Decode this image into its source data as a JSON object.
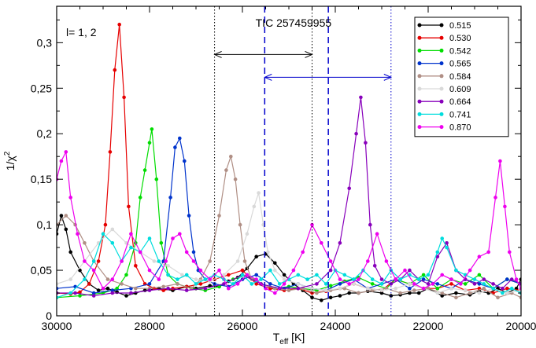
{
  "chart_data": {
    "type": "line",
    "title": "TIC 257459955",
    "annotation": "l= 1, 2",
    "xlabel": "T_eff [K]",
    "ylabel": "1/χ²",
    "xlim": [
      30000,
      20000
    ],
    "ylim": [
      0,
      0.34
    ],
    "x_reversed": true,
    "x_ticks": [
      30000,
      28000,
      26000,
      24000,
      22000,
      20000
    ],
    "x_tick_labels": [
      "30000",
      "28000",
      "26000",
      "24000",
      "22000",
      "20000"
    ],
    "y_ticks": [
      0,
      0.05,
      0.1,
      0.15,
      0.2,
      0.25,
      0.3
    ],
    "y_tick_labels": [
      "0",
      "0,05",
      "0,1",
      "0,15",
      "0,2",
      "0,25",
      "0,3"
    ],
    "grid": false,
    "legend_position": "top-right",
    "vertical_lines": [
      {
        "x": 26600,
        "style": "dotted",
        "color": "#000000"
      },
      {
        "x": 24500,
        "style": "dotted",
        "color": "#000000"
      },
      {
        "x": 25520,
        "style": "dashed",
        "color": "#0000cc"
      },
      {
        "x": 24150,
        "style": "dashed",
        "color": "#0000cc"
      },
      {
        "x": 22800,
        "style": "dotted",
        "color": "#0000cc"
      }
    ],
    "range_arrows": [
      {
        "from": 26600,
        "to": 24500,
        "y": 0.287,
        "color": "#000000"
      },
      {
        "from": 25520,
        "to": 22800,
        "y": 0.262,
        "color": "#0000cc"
      }
    ],
    "series": [
      {
        "name": "0.515",
        "color": "#000000",
        "x": [
          30000,
          29900,
          29800,
          29700,
          29500,
          29300,
          29100,
          28900,
          28700,
          28500,
          28300,
          28100,
          27800,
          27500,
          27200,
          27000,
          26700,
          26500,
          26300,
          26100,
          25900,
          25700,
          25500,
          25300,
          25100,
          24900,
          24700,
          24500,
          24300,
          24100,
          23900,
          23700,
          23500,
          23300,
          23000,
          22800,
          22600,
          22400,
          22200,
          22000,
          21700,
          21400,
          21100,
          20900,
          20700,
          20500,
          20300,
          20100,
          20000
        ],
        "y": [
          0.09,
          0.11,
          0.095,
          0.07,
          0.05,
          0.035,
          0.028,
          0.03,
          0.026,
          0.022,
          0.025,
          0.028,
          0.03,
          0.028,
          0.032,
          0.03,
          0.033,
          0.032,
          0.038,
          0.042,
          0.052,
          0.065,
          0.068,
          0.058,
          0.045,
          0.035,
          0.028,
          0.02,
          0.017,
          0.02,
          0.022,
          0.025,
          0.025,
          0.027,
          0.025,
          0.022,
          0.023,
          0.025,
          0.025,
          0.03,
          0.022,
          0.025,
          0.023,
          0.027,
          0.025,
          0.03,
          0.025,
          0.03,
          0.04
        ]
      },
      {
        "name": "0.530",
        "color": "#e60000",
        "x": [
          30000,
          29700,
          29500,
          29300,
          29100,
          28950,
          28850,
          28750,
          28650,
          28550,
          28450,
          28300,
          28100,
          27900,
          27700,
          27500,
          27200,
          26900,
          26600,
          26300,
          26000,
          25700,
          25400,
          25100,
          24800,
          24500,
          24200,
          23900,
          23600,
          23300,
          23000,
          22700,
          22400,
          22100,
          21800,
          21500,
          21200,
          20900,
          20600,
          20300,
          20000
        ],
        "y": [
          0.025,
          0.024,
          0.026,
          0.035,
          0.06,
          0.1,
          0.18,
          0.27,
          0.32,
          0.24,
          0.12,
          0.055,
          0.035,
          0.03,
          0.028,
          0.03,
          0.032,
          0.035,
          0.04,
          0.045,
          0.05,
          0.035,
          0.03,
          0.028,
          0.03,
          0.025,
          0.027,
          0.03,
          0.035,
          0.03,
          0.028,
          0.04,
          0.035,
          0.03,
          0.03,
          0.035,
          0.028,
          0.03,
          0.025,
          0.03,
          0.028
        ]
      },
      {
        "name": "0.542",
        "color": "#00dd00",
        "x": [
          30000,
          29500,
          29000,
          28700,
          28500,
          28300,
          28200,
          28100,
          28000,
          27950,
          27850,
          27750,
          27600,
          27400,
          27100,
          26800,
          26500,
          26200,
          25900,
          25600,
          25300,
          25000,
          24700,
          24400,
          24100,
          23800,
          23500,
          23200,
          22900,
          22700,
          22400,
          22100,
          21800,
          21500,
          21200,
          20900,
          20600,
          20300,
          20000
        ],
        "y": [
          0.02,
          0.022,
          0.025,
          0.03,
          0.045,
          0.08,
          0.13,
          0.16,
          0.19,
          0.205,
          0.15,
          0.08,
          0.045,
          0.035,
          0.03,
          0.028,
          0.032,
          0.04,
          0.045,
          0.035,
          0.03,
          0.032,
          0.03,
          0.028,
          0.033,
          0.038,
          0.042,
          0.035,
          0.03,
          0.04,
          0.035,
          0.045,
          0.03,
          0.04,
          0.035,
          0.045,
          0.03,
          0.04,
          0.035
        ]
      },
      {
        "name": "0.565",
        "color": "#0033cc",
        "x": [
          30000,
          29600,
          29200,
          28800,
          28400,
          28000,
          27700,
          27550,
          27450,
          27350,
          27250,
          27150,
          27050,
          26950,
          26800,
          26600,
          26300,
          26000,
          25700,
          25400,
          25100,
          24800,
          24500,
          24200,
          23900,
          23600,
          23300,
          23000,
          22700,
          22400,
          22100,
          21800,
          21500,
          21200,
          20900,
          20600,
          20300,
          20000
        ],
        "y": [
          0.03,
          0.032,
          0.025,
          0.028,
          0.03,
          0.035,
          0.06,
          0.13,
          0.185,
          0.195,
          0.17,
          0.11,
          0.07,
          0.05,
          0.04,
          0.035,
          0.032,
          0.04,
          0.045,
          0.035,
          0.03,
          0.035,
          0.03,
          0.028,
          0.035,
          0.04,
          0.03,
          0.035,
          0.04,
          0.03,
          0.04,
          0.035,
          0.03,
          0.04,
          0.035,
          0.03,
          0.04,
          0.035
        ]
      },
      {
        "name": "0.584",
        "color": "#b08f85",
        "x": [
          30000,
          29800,
          29600,
          29400,
          29200,
          28900,
          28600,
          28300,
          28000,
          27700,
          27400,
          27100,
          26900,
          26700,
          26500,
          26350,
          26250,
          26150,
          26050,
          25950,
          25800,
          25600,
          25300,
          25000,
          24700,
          24400,
          24100,
          23800,
          23500,
          23200,
          22900,
          22600,
          22300,
          22000,
          21700,
          21400,
          21100,
          20800,
          20500,
          20200,
          20000
        ],
        "y": [
          0.1,
          0.11,
          0.1,
          0.08,
          0.06,
          0.04,
          0.035,
          0.03,
          0.03,
          0.032,
          0.035,
          0.03,
          0.04,
          0.06,
          0.11,
          0.16,
          0.175,
          0.15,
          0.1,
          0.06,
          0.04,
          0.035,
          0.03,
          0.028,
          0.03,
          0.025,
          0.028,
          0.03,
          0.025,
          0.028,
          0.03,
          0.025,
          0.028,
          0.03,
          0.025,
          0.02,
          0.025,
          0.03,
          0.02,
          0.025,
          0.02
        ]
      },
      {
        "name": "0.609",
        "color": "#d9d9d9",
        "x": [
          30000,
          29700,
          29400,
          29100,
          28800,
          28500,
          28200,
          27900,
          27600,
          27300,
          27000,
          26700,
          26400,
          26100,
          25900,
          25750,
          25650,
          25550,
          25450,
          25300,
          25100,
          24800,
          24500,
          24200,
          23900,
          23600,
          23300,
          23000,
          22700,
          22400,
          22100,
          21800,
          21500,
          21200,
          20900,
          20600,
          20300,
          20000
        ],
        "y": [
          0.035,
          0.04,
          0.06,
          0.08,
          0.095,
          0.08,
          0.07,
          0.06,
          0.055,
          0.045,
          0.04,
          0.038,
          0.045,
          0.06,
          0.09,
          0.12,
          0.135,
          0.1,
          0.07,
          0.05,
          0.04,
          0.035,
          0.03,
          0.028,
          0.03,
          0.035,
          0.03,
          0.028,
          0.03,
          0.035,
          0.03,
          0.025,
          0.03,
          0.028,
          0.025,
          0.03,
          0.025,
          0.028
        ]
      },
      {
        "name": "0.664",
        "color": "#8800bb",
        "x": [
          30000,
          29600,
          29200,
          28800,
          28400,
          28000,
          27600,
          27200,
          26800,
          26400,
          26000,
          25600,
          25200,
          24800,
          24400,
          24100,
          23900,
          23700,
          23550,
          23450,
          23350,
          23250,
          23150,
          23000,
          22800,
          22600,
          22400,
          22200,
          22000,
          21800,
          21600,
          21400,
          21200,
          21000,
          20800,
          20600,
          20400,
          20200,
          20000
        ],
        "y": [
          0.025,
          0.025,
          0.022,
          0.025,
          0.025,
          0.028,
          0.03,
          0.028,
          0.03,
          0.035,
          0.045,
          0.035,
          0.03,
          0.03,
          0.035,
          0.05,
          0.08,
          0.14,
          0.2,
          0.24,
          0.19,
          0.1,
          0.055,
          0.04,
          0.035,
          0.04,
          0.05,
          0.04,
          0.035,
          0.065,
          0.08,
          0.05,
          0.04,
          0.035,
          0.04,
          0.035,
          0.03,
          0.04,
          0.035
        ]
      },
      {
        "name": "0.741",
        "color": "#00dddd",
        "x": [
          30000,
          29700,
          29400,
          29200,
          29000,
          28800,
          28600,
          28400,
          28200,
          28000,
          27800,
          27600,
          27400,
          27200,
          27000,
          26800,
          26600,
          26400,
          26200,
          26000,
          25800,
          25600,
          25400,
          25200,
          25000,
          24800,
          24600,
          24400,
          24200,
          24000,
          23800,
          23600,
          23400,
          23200,
          23000,
          22800,
          22600,
          22400,
          22200,
          22000,
          21800,
          21700,
          21600,
          21400,
          21200,
          21000,
          20800,
          20600,
          20400,
          20200,
          20000
        ],
        "y": [
          0.02,
          0.025,
          0.04,
          0.06,
          0.09,
          0.08,
          0.06,
          0.075,
          0.07,
          0.085,
          0.06,
          0.045,
          0.04,
          0.045,
          0.035,
          0.04,
          0.045,
          0.04,
          0.035,
          0.045,
          0.035,
          0.04,
          0.05,
          0.035,
          0.04,
          0.045,
          0.04,
          0.045,
          0.035,
          0.05,
          0.045,
          0.04,
          0.05,
          0.04,
          0.035,
          0.05,
          0.04,
          0.045,
          0.04,
          0.045,
          0.07,
          0.085,
          0.075,
          0.05,
          0.045,
          0.04,
          0.035,
          0.03,
          0.025,
          0.03,
          0.025
        ]
      },
      {
        "name": "0.870",
        "color": "#ee00ee",
        "x": [
          30000,
          29900,
          29800,
          29700,
          29550,
          29400,
          29200,
          29000,
          28800,
          28600,
          28400,
          28200,
          28000,
          27800,
          27650,
          27500,
          27350,
          27200,
          27050,
          26900,
          26700,
          26500,
          26300,
          26100,
          25900,
          25700,
          25500,
          25300,
          25100,
          24900,
          24700,
          24500,
          24300,
          24100,
          23900,
          23700,
          23500,
          23300,
          23100,
          22900,
          22700,
          22500,
          22300,
          22100,
          21900,
          21700,
          21500,
          21300,
          21100,
          20900,
          20700,
          20550,
          20450,
          20350,
          20250,
          20100,
          20000
        ],
        "y": [
          0.15,
          0.17,
          0.18,
          0.13,
          0.09,
          0.06,
          0.05,
          0.03,
          0.04,
          0.06,
          0.09,
          0.07,
          0.05,
          0.04,
          0.06,
          0.085,
          0.09,
          0.07,
          0.06,
          0.05,
          0.04,
          0.05,
          0.03,
          0.035,
          0.045,
          0.04,
          0.03,
          0.025,
          0.035,
          0.05,
          0.07,
          0.1,
          0.08,
          0.06,
          0.04,
          0.035,
          0.04,
          0.06,
          0.09,
          0.06,
          0.04,
          0.05,
          0.035,
          0.03,
          0.035,
          0.045,
          0.04,
          0.035,
          0.05,
          0.065,
          0.07,
          0.13,
          0.17,
          0.12,
          0.07,
          0.04,
          0.03
        ]
      }
    ]
  }
}
